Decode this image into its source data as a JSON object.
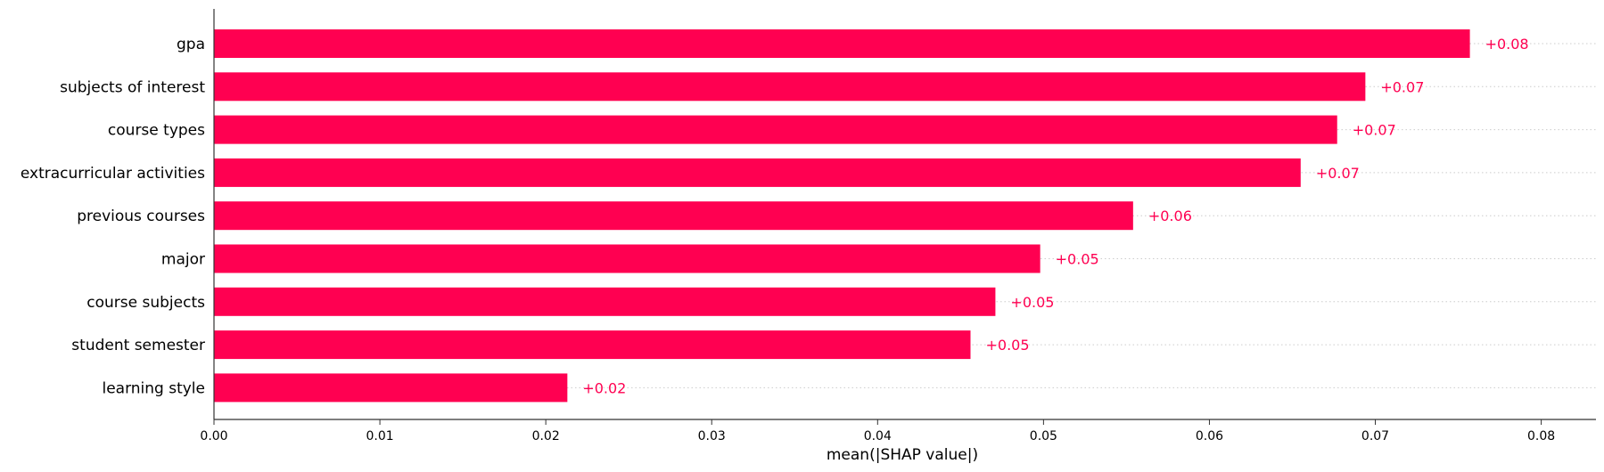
{
  "chart_data": {
    "type": "bar",
    "orientation": "horizontal",
    "categories": [
      "gpa",
      "subjects of interest",
      "course types",
      "extracurricular activities",
      "previous courses",
      "major",
      "course subjects",
      "student semester",
      "learning style"
    ],
    "values": [
      0.0757,
      0.0694,
      0.0677,
      0.0655,
      0.0554,
      0.0498,
      0.0471,
      0.0456,
      0.0213
    ],
    "value_labels": [
      "+0.08",
      "+0.07",
      "+0.07",
      "+0.07",
      "+0.06",
      "+0.05",
      "+0.05",
      "+0.05",
      "+0.02"
    ],
    "xlabel": "mean(|SHAP value|)",
    "ylabel": "",
    "xlim": [
      0,
      0.0833
    ],
    "xticks": [
      "0.00",
      "0.01",
      "0.02",
      "0.03",
      "0.04",
      "0.05",
      "0.06",
      "0.07",
      "0.08"
    ],
    "grid": "dotted horizontal guide per bar",
    "legend": "none",
    "bar_color": "#ff0051"
  }
}
